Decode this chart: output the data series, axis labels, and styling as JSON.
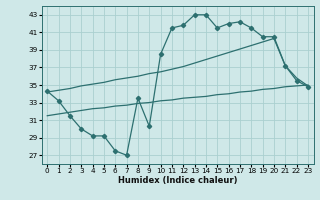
{
  "xlabel": "Humidex (Indice chaleur)",
  "bg_color": "#cfe8e8",
  "grid_color": "#aad0d0",
  "line_color": "#2d7070",
  "ylim": [
    26,
    44
  ],
  "xlim": [
    -0.5,
    23.5
  ],
  "yticks": [
    27,
    29,
    31,
    33,
    35,
    37,
    39,
    41,
    43
  ],
  "xticks": [
    0,
    1,
    2,
    3,
    4,
    5,
    6,
    7,
    8,
    9,
    10,
    11,
    12,
    13,
    14,
    15,
    16,
    17,
    18,
    19,
    20,
    21,
    22,
    23
  ],
  "line1_x": [
    0,
    1,
    2,
    3,
    4,
    5,
    6,
    7,
    8,
    9,
    10,
    11,
    12,
    13,
    14,
    15,
    16,
    17,
    18,
    19,
    20,
    21,
    22,
    23
  ],
  "line1_y": [
    34.3,
    33.2,
    31.5,
    30.0,
    29.2,
    29.2,
    27.5,
    27.0,
    33.5,
    30.3,
    38.5,
    41.5,
    41.8,
    43.0,
    43.0,
    41.5,
    42.0,
    42.2,
    41.5,
    40.5,
    40.5,
    37.2,
    35.5,
    34.8
  ],
  "line2_x": [
    0,
    1,
    2,
    3,
    4,
    5,
    6,
    7,
    8,
    9,
    10,
    11,
    12,
    13,
    14,
    15,
    16,
    17,
    18,
    19,
    20,
    21,
    22,
    23
  ],
  "line2_y": [
    34.2,
    34.4,
    34.6,
    34.9,
    35.1,
    35.3,
    35.6,
    35.8,
    36.0,
    36.3,
    36.5,
    36.8,
    37.1,
    37.5,
    37.9,
    38.3,
    38.7,
    39.1,
    39.5,
    39.9,
    40.3,
    37.2,
    35.8,
    34.9
  ],
  "line3_x": [
    0,
    1,
    2,
    3,
    4,
    5,
    6,
    7,
    8,
    9,
    10,
    11,
    12,
    13,
    14,
    15,
    16,
    17,
    18,
    19,
    20,
    21,
    22,
    23
  ],
  "line3_y": [
    31.5,
    31.7,
    31.9,
    32.1,
    32.3,
    32.4,
    32.6,
    32.7,
    32.9,
    33.0,
    33.2,
    33.3,
    33.5,
    33.6,
    33.7,
    33.9,
    34.0,
    34.2,
    34.3,
    34.5,
    34.6,
    34.8,
    34.9,
    35.0
  ],
  "xlabel_fontsize": 6.0,
  "tick_fontsize": 5.2
}
